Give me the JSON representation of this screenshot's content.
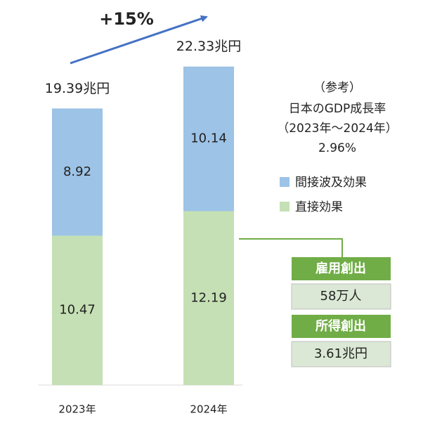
{
  "chart_data": {
    "type": "bar",
    "stacked": true,
    "categories": [
      "2023年",
      "2024年"
    ],
    "series": [
      {
        "name": "直接効果",
        "color": "#c5e0b4",
        "values": [
          10.47,
          12.19
        ]
      },
      {
        "name": "間接波及効果",
        "color": "#9dc3e6",
        "values": [
          8.92,
          10.14
        ]
      }
    ],
    "totals": {
      "values": [
        19.39,
        22.33
      ],
      "value_labels": [
        "19.39兆円",
        "22.33兆円"
      ]
    },
    "growth_label": "+15%",
    "note": [
      "（参考）",
      "日本のGDP成長率",
      "（2023年～2024年）",
      "2.96%"
    ],
    "effects": [
      {
        "title": "雇用創出",
        "value": "58万人"
      },
      {
        "title": "所得創出",
        "value": "3.61兆円"
      }
    ]
  }
}
